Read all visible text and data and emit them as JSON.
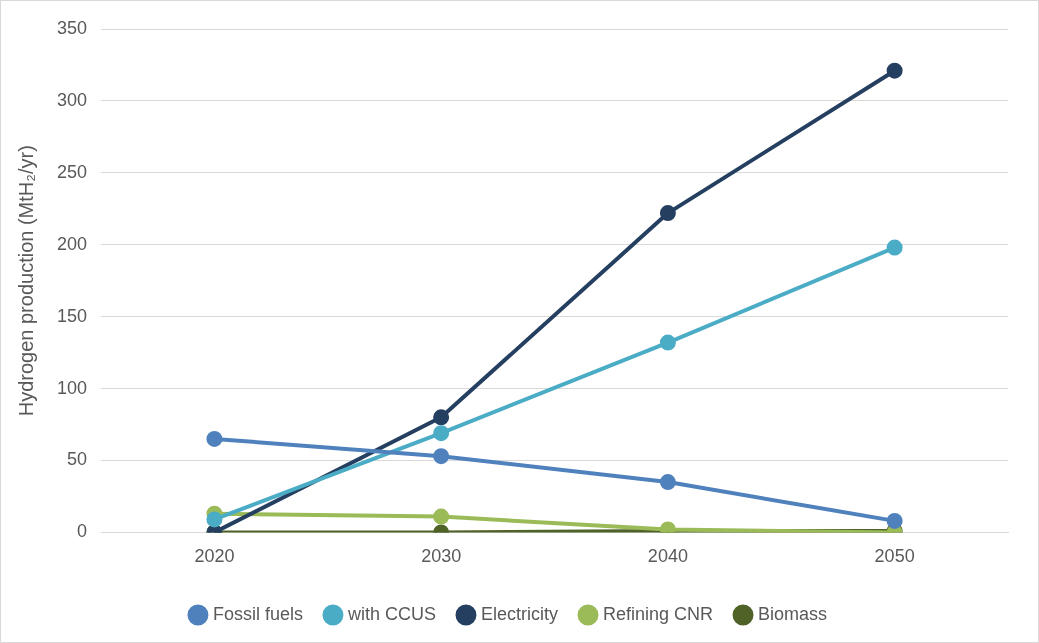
{
  "chart_data": {
    "type": "line",
    "ylabel": "Hydrogen production (MtH₂/yr)",
    "categories": [
      "2020",
      "2030",
      "2040",
      "2050"
    ],
    "series": [
      {
        "name": "Fossil fuels",
        "color": "#4f81bd",
        "values": [
          65,
          53,
          35,
          8
        ]
      },
      {
        "name": "with CCUS",
        "color": "#4bacc6",
        "values": [
          9,
          69,
          132,
          198
        ]
      },
      {
        "name": "Electricity",
        "color": "#243f60",
        "values": [
          0,
          80,
          222,
          321
        ]
      },
      {
        "name": "Refining CNR",
        "color": "#9bbb59",
        "values": [
          13,
          11,
          2,
          0
        ]
      },
      {
        "name": "Biomass",
        "color": "#4f6228",
        "values": [
          0,
          0,
          1,
          1
        ]
      }
    ],
    "ylim": [
      0,
      350
    ],
    "yticks": [
      0,
      50,
      100,
      150,
      200,
      250,
      300,
      350
    ],
    "grid": "y",
    "legend": "bottom",
    "marker": "circle",
    "line_style": "solid"
  }
}
